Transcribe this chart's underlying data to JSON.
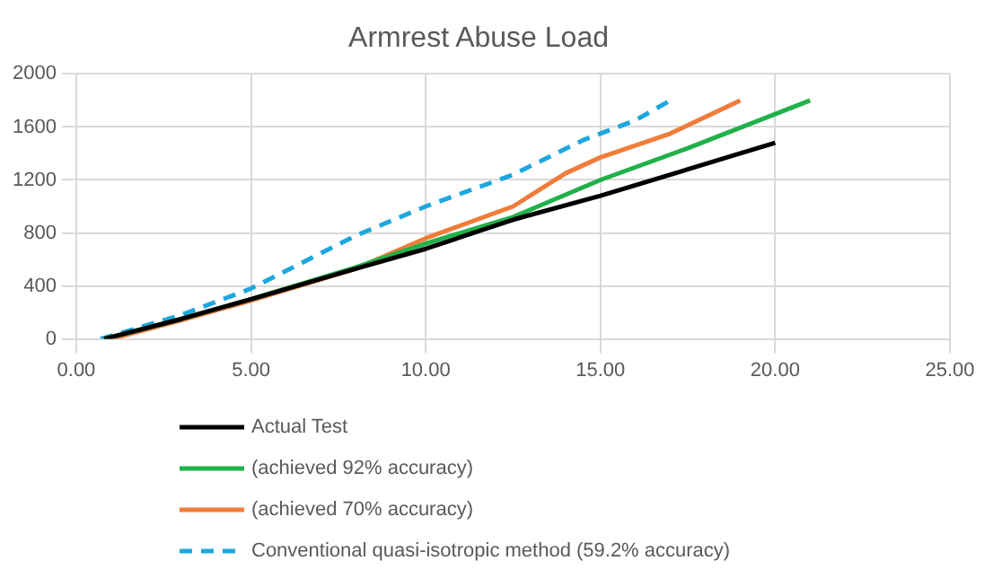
{
  "chart_data": {
    "type": "line",
    "title": "Armrest Abuse Load",
    "xlim": [
      0,
      25
    ],
    "xticks": [
      {
        "value": 0,
        "label": "0.00"
      },
      {
        "value": 5,
        "label": "5.00"
      },
      {
        "value": 10,
        "label": "10.00"
      },
      {
        "value": 15,
        "label": "15.00"
      },
      {
        "value": 20,
        "label": "20.00"
      },
      {
        "value": 25,
        "label": "25.00"
      }
    ],
    "ylim": [
      0,
      2000
    ],
    "yticks": [
      0,
      400,
      800,
      1200,
      1600,
      2000
    ],
    "grid": true,
    "legend": "bottom",
    "marker": "none",
    "series": [
      {
        "name": "Actual Test",
        "color": "#000000",
        "x": [
          0.8,
          3,
          5,
          8,
          10,
          12.5,
          15,
          17.5,
          19,
          20
        ],
        "values": [
          0,
          150,
          300,
          530,
          680,
          900,
          1080,
          1280,
          1400,
          1480
        ]
      },
      {
        "name": "(achieved 92% accuracy)",
        "color": "#21b14b",
        "x": [
          0.8,
          3,
          5,
          8,
          10,
          12.5,
          15,
          17.5,
          21
        ],
        "values": [
          0,
          150,
          300,
          540,
          720,
          920,
          1200,
          1440,
          1800
        ]
      },
      {
        "name": "(achieved 70% accuracy)",
        "color": "#f07c3a",
        "x": [
          1,
          3,
          5,
          8,
          10,
          12.5,
          14,
          15,
          17,
          19
        ],
        "values": [
          0,
          140,
          290,
          530,
          760,
          1000,
          1250,
          1370,
          1550,
          1800
        ]
      },
      {
        "name": "Conventional quasi-isotropic method (59.2% accuracy)",
        "color": "#1ea7df",
        "line_style": "dashed",
        "x": [
          0.7,
          3,
          5,
          8,
          10,
          12.5,
          14.5,
          16,
          17
        ],
        "values": [
          0,
          180,
          380,
          780,
          1000,
          1240,
          1500,
          1650,
          1800
        ]
      }
    ]
  }
}
